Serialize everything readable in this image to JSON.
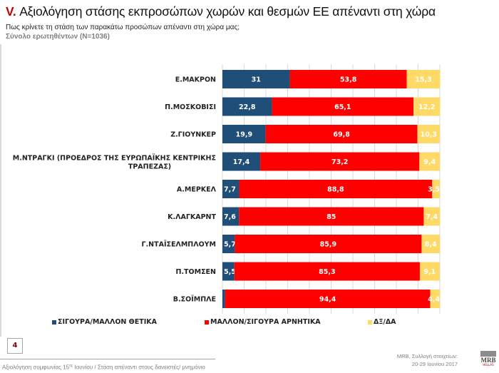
{
  "header": {
    "roman": "V.",
    "title": " Αξιολόγηση στάσης εκπροσώπων χωρών και θεσμών ΕΕ απέναντι στη χώρα",
    "subtitle": "Πως κρίνετε τη στάση των παρακάτω προσώπων απέναντι στη χώρα μας;",
    "sample": "Σύνολο ερωτηθέντων (Ν=1036)"
  },
  "colors": {
    "positive": "#1f4e79",
    "negative": "#ff0000",
    "dk": "#ffd966",
    "grid": "#d9d9d9"
  },
  "chart_data": {
    "type": "bar",
    "orientation": "horizontal-stacked-100",
    "title": "",
    "xlim": [
      0,
      100
    ],
    "grid": true,
    "legend_position": "bottom",
    "categories": [
      [
        "Ε.ΜΑΚΡΟΝ"
      ],
      [
        "Π.ΜΟΣΚΟΒΙΣΙ"
      ],
      [
        "Ζ.ΓΙΟΥΝΚΕΡ"
      ],
      [
        "Μ.ΝΤΡΑΓΚΙ (ΠΡΟΕΔΡΟΣ ΤΗΣ ΕΥΡΩΠΑΪΚΗΣ ΚΕΝΤΡΙΚΗΣ",
        "ΤΡΑΠΕΖΑΣ)"
      ],
      [
        "Α.ΜΕΡΚΕΛ"
      ],
      [
        "Κ.ΛΑΓΚΑΡΝΤ"
      ],
      [
        "Γ.ΝΤΑΪΣΕΛΜΠΛΟΥΜ"
      ],
      [
        "Π.ΤΟΜΣΕΝ"
      ],
      [
        "Β.ΣΟΪΜΠΛΕ"
      ]
    ],
    "series": [
      {
        "name": "ΣΙΓΟΥΡΑ/ΜΑΛΛΟΝ ΘΕΤΙΚΑ",
        "key": "positive",
        "values": [
          31,
          22.8,
          19.9,
          17.4,
          7.7,
          7.6,
          5.7,
          5.5,
          1.2
        ],
        "labels": [
          "31",
          "22,8",
          "19,9",
          "17,4",
          "7,7",
          "7,6",
          "5,7",
          "5,5",
          "1,2"
        ]
      },
      {
        "name": "ΜΑΛΛΟΝ/ΣΙΓΟΥΡΑ ΑΡΝΗΤΙΚΑ",
        "key": "negative",
        "values": [
          53.8,
          65.1,
          69.8,
          73.2,
          88.8,
          85,
          85.9,
          85.3,
          94.4
        ],
        "labels": [
          "53,8",
          "65,1",
          "69,8",
          "73,2",
          "88,8",
          "85",
          "85,9",
          "85,3",
          "94,4"
        ]
      },
      {
        "name": "ΔΞ/ΔΑ",
        "key": "dk",
        "values": [
          15.3,
          12.2,
          10.3,
          9.4,
          3.5,
          7.4,
          8.4,
          9.1,
          4.4
        ],
        "labels": [
          "15,3",
          "12,2",
          "10,3",
          "9,4",
          "3,5",
          "7,4",
          "8,4",
          "9,1",
          "4,4"
        ]
      }
    ]
  },
  "legend": {
    "positive": "ΣΙΓΟΥΡΑ/ΜΑΛΛΟΝ ΘΕΤΙΚΑ",
    "negative": "ΜΑΛΛΟΝ/ΣΙΓΟΥΡΑ ΑΡΝΗΤΙΚΑ",
    "dk": "ΔΞ/ΔΑ"
  },
  "footer": {
    "page_number": "4",
    "text_before": "Αξιολόγηση συμφωνίας 15",
    "text_sup": "ης",
    "text_after": " Ιουνίου / Στάση απέναντι στους δανειστές/ μνημόνιο",
    "source_line1": "MRB, Συλλογή στοιχείων:",
    "source_line2": "20-29  Ιουνίου 2017",
    "logo_text": "MRB",
    "logo_sub": "HELLAS"
  }
}
